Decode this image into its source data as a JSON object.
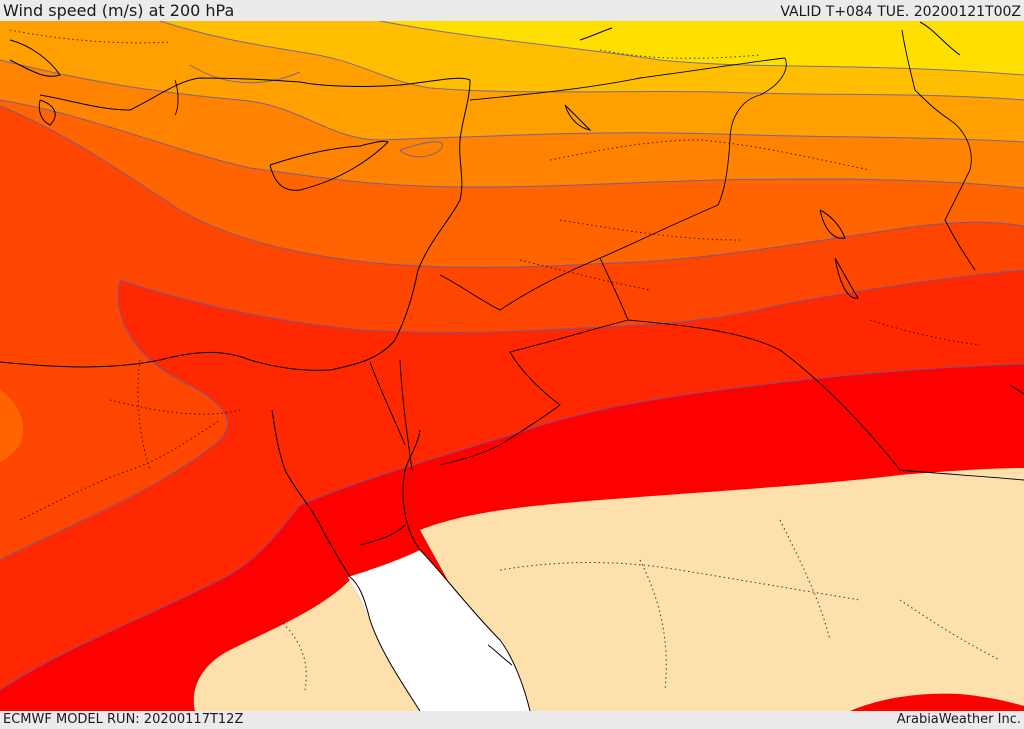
{
  "header": {
    "title": "Wind speed (m/s) at 200 hPa",
    "valid_time": "VALID T+084 TUE. 20200121T00Z"
  },
  "footer": {
    "model_run": "ECMWF MODEL RUN: 20200117T12Z",
    "credit": "ArabiaWeather Inc."
  },
  "map": {
    "colors": {
      "band_1": "#ffdf00",
      "band_2": "#ffbf00",
      "band_3": "#ffa000",
      "band_4": "#ff8200",
      "band_5": "#ff6400",
      "band_6": "#ff4600",
      "band_7": "#ff2800",
      "band_8": "#ff0000",
      "land_below_threshold": "#fde0ab",
      "sea": "#ffffff",
      "coastline": "#000000",
      "contour": "#5a5ab4"
    }
  }
}
